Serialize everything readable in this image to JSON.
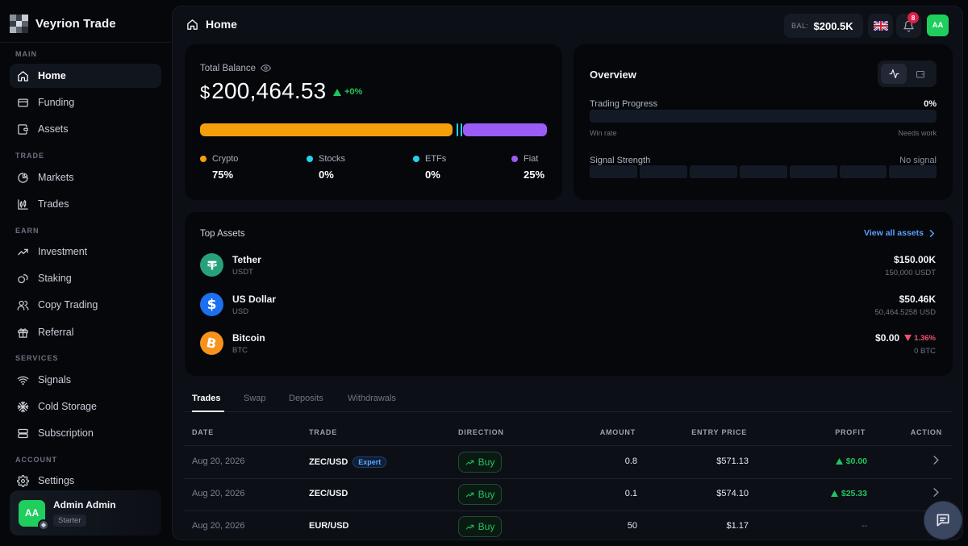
{
  "app": {
    "brand": "Veyrion Trade"
  },
  "sidebar": {
    "sections": {
      "main": "MAIN",
      "trade": "TRADE",
      "earn": "EARN",
      "services": "SERVICES",
      "account": "ACCOUNT"
    },
    "items": [
      {
        "label": "Home",
        "icon": "home-icon",
        "active": true
      },
      {
        "label": "Funding",
        "icon": "wallet-icon"
      },
      {
        "label": "Assets",
        "icon": "assets-icon"
      },
      {
        "label": "Markets",
        "icon": "pie-chart-icon"
      },
      {
        "label": "Trades",
        "icon": "candlestick-icon"
      },
      {
        "label": "Investment",
        "icon": "trend-up-icon"
      },
      {
        "label": "Staking",
        "icon": "coins-icon"
      },
      {
        "label": "Copy Trading",
        "icon": "users-icon"
      },
      {
        "label": "Referral",
        "icon": "gift-icon"
      },
      {
        "label": "Signals",
        "icon": "wifi-icon"
      },
      {
        "label": "Cold Storage",
        "icon": "snowflake-icon"
      },
      {
        "label": "Subscription",
        "icon": "layers-icon"
      },
      {
        "label": "Settings",
        "icon": "gear-icon"
      }
    ],
    "user": {
      "initials": "AA",
      "name": "Admin Admin",
      "plan": "Starter"
    }
  },
  "header": {
    "title": "Home",
    "balance_label": "BAL:",
    "balance_value": "$200.5K",
    "notification_count": "8",
    "avatar_initials": "AA"
  },
  "balance": {
    "label": "Total Balance",
    "currency": "$",
    "amount": "200,464.53",
    "change": "+0%",
    "allocation": [
      {
        "name": "Crypto",
        "value": "75%",
        "fraction": 0.75,
        "color": "#f59e0b"
      },
      {
        "name": "Stocks",
        "value": "0%",
        "fraction": 0,
        "color": "#22d3ee"
      },
      {
        "name": "ETFs",
        "value": "0%",
        "fraction": 0,
        "color": "#22d3ee"
      },
      {
        "name": "Fiat",
        "value": "25%",
        "fraction": 0.25,
        "color": "#9b5cf6"
      }
    ]
  },
  "overview": {
    "title": "Overview",
    "trading_progress_label": "Trading Progress",
    "trading_progress_value": "0%",
    "win_rate_label": "Win rate",
    "needs_work_label": "Needs work",
    "signal_strength_label": "Signal Strength",
    "signal_strength_value": "No signal"
  },
  "top_assets": {
    "title": "Top Assets",
    "view_all": "View all assets",
    "items": [
      {
        "name": "Tether",
        "symbol": "USDT",
        "value": "$150.00K",
        "sub": "150,000 USDT",
        "icon": "tether-icon",
        "color": "#26a17b"
      },
      {
        "name": "US Dollar",
        "symbol": "USD",
        "value": "$50.46K",
        "sub": "50,464.5258 USD",
        "icon": "dollar-icon",
        "color": "#1d6ff2"
      },
      {
        "name": "Bitcoin",
        "symbol": "BTC",
        "value": "$0.00",
        "change": "1.36%",
        "sub": "0 BTC",
        "icon": "bitcoin-icon",
        "color": "#f7931a"
      }
    ]
  },
  "tabs": [
    "Trades",
    "Swap",
    "Deposits",
    "Withdrawals"
  ],
  "table": {
    "headers": [
      "DATE",
      "TRADE",
      "DIRECTION",
      "AMOUNT",
      "ENTRY PRICE",
      "PROFIT",
      "ACTION"
    ],
    "rows": [
      {
        "date": "Aug 20, 2026",
        "trade": "ZEC/USD",
        "badge": "Expert",
        "direction": "Buy",
        "amount": "0.8",
        "entry": "$571.13",
        "profit": "$0.00"
      },
      {
        "date": "Aug 20, 2026",
        "trade": "ZEC/USD",
        "direction": "Buy",
        "amount": "0.1",
        "entry": "$574.10",
        "profit": "$25.33"
      },
      {
        "date": "Aug 20, 2026",
        "trade": "EUR/USD",
        "direction": "Buy",
        "amount": "50",
        "entry": "$1.17",
        "profit": "--"
      }
    ]
  }
}
